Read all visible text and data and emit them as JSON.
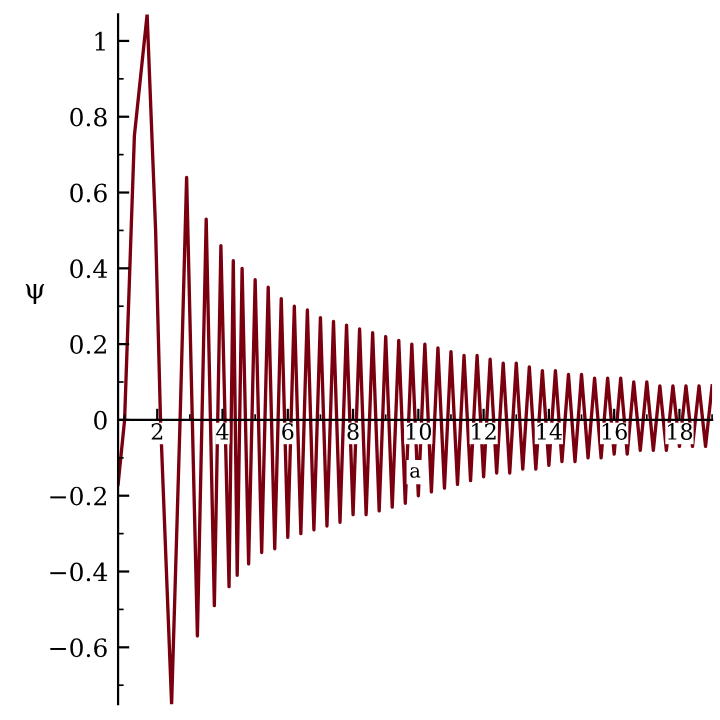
{
  "chart_data": {
    "type": "line",
    "xlabel": "a",
    "ylabel": "ψ",
    "xlim": [
      0.8,
      19
    ],
    "ylim": [
      -0.75,
      1.07
    ],
    "xticks": [
      2,
      4,
      6,
      8,
      10,
      12,
      14,
      16,
      18
    ],
    "yticks": [
      -0.6,
      -0.4,
      -0.2,
      0,
      0.2,
      0.4,
      0.6,
      0.8,
      1
    ],
    "grid": false,
    "legend": false,
    "marker": "none",
    "line_style": "solid",
    "series": [
      {
        "color": "#7a0010",
        "x": [
          0.8,
          1.0,
          1.3,
          1.69,
          1.95,
          2.1,
          2.44,
          2.7,
          2.9,
          3.23,
          3.5,
          3.75,
          3.95,
          4.2,
          4.33,
          4.45,
          4.6,
          4.8,
          5.0,
          5.2,
          5.4,
          5.6,
          5.8,
          6.0,
          6.2,
          6.4,
          6.6,
          6.8,
          7.0,
          7.2,
          7.4,
          7.6,
          7.8,
          8.0,
          8.2,
          8.4,
          8.6,
          8.8,
          9.0,
          9.2,
          9.4,
          9.6,
          9.8,
          10.0,
          10.2,
          10.4,
          10.6,
          10.8,
          11.0,
          11.2,
          11.4,
          11.6,
          11.8,
          12.0,
          12.2,
          12.4,
          12.6,
          12.8,
          13.0,
          13.2,
          13.4,
          13.6,
          13.8,
          14.0,
          14.2,
          14.4,
          14.6,
          14.8,
          15.0,
          15.2,
          15.4,
          15.6,
          15.8,
          16.0,
          16.2,
          16.4,
          16.6,
          16.8,
          17.0,
          17.2,
          17.4,
          17.6,
          17.8,
          18.0,
          18.2,
          18.4,
          18.6,
          18.8,
          19.0
        ],
        "values": [
          -0.17,
          0.0,
          0.75,
          1.07,
          0.5,
          0.0,
          -0.75,
          0.0,
          0.64,
          -0.57,
          0.53,
          -0.49,
          0.46,
          -0.44,
          0.42,
          -0.41,
          0.4,
          -0.38,
          0.37,
          -0.35,
          0.35,
          -0.34,
          0.32,
          -0.31,
          0.3,
          -0.3,
          0.29,
          -0.29,
          0.27,
          -0.28,
          0.26,
          -0.27,
          0.25,
          -0.25,
          0.24,
          -0.25,
          0.23,
          -0.24,
          0.22,
          -0.23,
          0.21,
          -0.22,
          0.2,
          -0.2,
          0.2,
          -0.19,
          0.19,
          -0.18,
          0.18,
          -0.17,
          0.17,
          -0.16,
          0.17,
          -0.15,
          0.16,
          -0.14,
          0.15,
          -0.14,
          0.15,
          -0.13,
          0.14,
          -0.13,
          0.13,
          -0.12,
          0.13,
          -0.11,
          0.12,
          -0.11,
          0.12,
          -0.1,
          0.11,
          -0.1,
          0.11,
          -0.09,
          0.11,
          -0.09,
          0.1,
          -0.08,
          0.1,
          -0.08,
          0.09,
          -0.08,
          0.09,
          -0.07,
          0.09,
          -0.07,
          0.09,
          -0.07,
          0.09
        ]
      }
    ]
  }
}
